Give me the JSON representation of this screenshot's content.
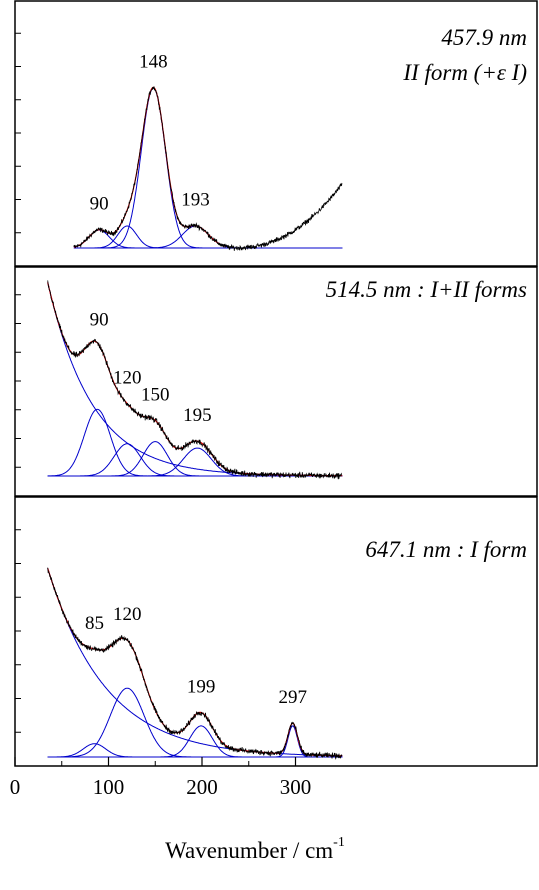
{
  "chart_data": {
    "type": "line",
    "xlabel": "Wavenumber / cm",
    "xlabel_superscript": "-1",
    "xlim": [
      0,
      350
    ],
    "x_ticks": [
      0,
      100,
      200,
      300
    ],
    "x_tick_labels": [
      "0",
      "100",
      "200",
      "300"
    ],
    "colors": {
      "spectrum": "#000000",
      "fit_component": "#0000cc",
      "fit_total": "#dd0000",
      "frame": "#000000"
    },
    "panels": [
      {
        "title_lines": [
          "457.9 nm",
          "II form (+ε I)"
        ],
        "title_align": "right",
        "x_start": 63,
        "noise": 0.012,
        "tail": {
          "type": "rising",
          "start": 235,
          "end": 350,
          "amp": 0.32,
          "power": 2.2
        },
        "components": [
          {
            "center": 90,
            "amp": 0.09,
            "width": 11
          },
          {
            "center": 120,
            "amp": 0.11,
            "width": 10
          },
          {
            "center": 148,
            "amp": 0.8,
            "width": 13
          },
          {
            "center": 193,
            "amp": 0.11,
            "width": 14
          }
        ],
        "peak_labels": [
          {
            "text": "90",
            "x": 90
          },
          {
            "text": "148",
            "x": 148
          },
          {
            "text": "193",
            "x": 193
          }
        ]
      },
      {
        "title_lines": [
          "514.5 nm : I+II forms"
        ],
        "title_align": "right",
        "x_start": 35,
        "noise": 0.013,
        "background": {
          "type": "exp",
          "amp": 0.9,
          "decay": 48
        },
        "components": [
          {
            "center": 88,
            "amp": 0.31,
            "width": 14
          },
          {
            "center": 120,
            "amp": 0.15,
            "width": 14
          },
          {
            "center": 150,
            "amp": 0.16,
            "width": 13
          },
          {
            "center": 195,
            "amp": 0.13,
            "width": 15
          }
        ],
        "peak_labels": [
          {
            "text": "90",
            "x": 90
          },
          {
            "text": "120",
            "x": 120
          },
          {
            "text": "150",
            "x": 150
          },
          {
            "text": "195",
            "x": 195
          }
        ]
      },
      {
        "title_lines": [
          "647.1 nm : I form"
        ],
        "title_align": "right",
        "x_start": 35,
        "noise": 0.012,
        "background": {
          "type": "exp",
          "amp": 0.85,
          "decay": 62
        },
        "components": [
          {
            "center": 85,
            "amp": 0.06,
            "width": 12
          },
          {
            "center": 120,
            "amp": 0.31,
            "width": 18
          },
          {
            "center": 199,
            "amp": 0.14,
            "width": 12
          },
          {
            "center": 297,
            "amp": 0.14,
            "width": 5
          }
        ],
        "peak_labels": [
          {
            "text": "85",
            "x": 85
          },
          {
            "text": "120",
            "x": 120
          },
          {
            "text": "199",
            "x": 199
          },
          {
            "text": "297",
            "x": 297
          }
        ]
      }
    ]
  }
}
